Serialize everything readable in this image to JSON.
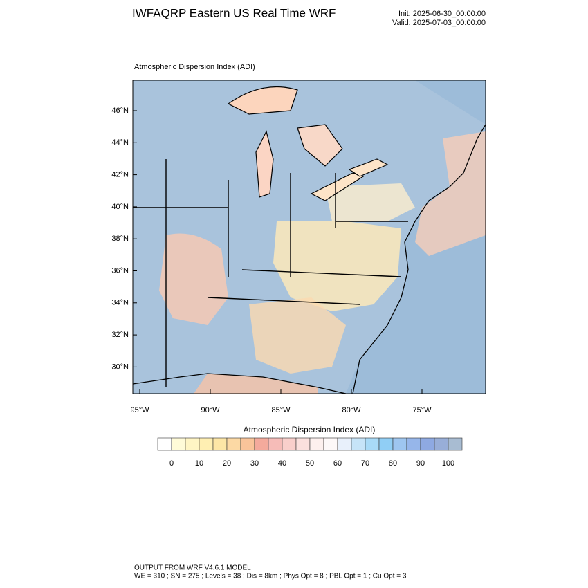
{
  "header": {
    "title": "IWFAQRP Eastern US Real Time WRF",
    "init": "Init: 2025-06-30_00:00:00",
    "valid": "Valid: 2025-07-03_00:00:00"
  },
  "map": {
    "subtitle": "Atmospheric Dispersion Index   (ADI)",
    "lat_labels": [
      "46°N",
      "44°N",
      "42°N",
      "40°N",
      "38°N",
      "36°N",
      "34°N",
      "32°N",
      "30°N"
    ],
    "lon_labels": [
      "95°W",
      "90°W",
      "85°W",
      "80°W",
      "75°W"
    ]
  },
  "colorbar": {
    "title": "Atmospheric Dispersion Index  (ADI)",
    "colors": [
      "#ffffff",
      "#fffbd8",
      "#fff5c4",
      "#ffefb2",
      "#fde6a6",
      "#fcd9a4",
      "#f9c49a",
      "#f4aa9c",
      "#f6bcb8",
      "#f9cfcb",
      "#fbe0dd",
      "#fdf0ee",
      "#fdf8f8",
      "#e8f0fb",
      "#c6e4f8",
      "#a8daf7",
      "#90cef5",
      "#9ec6f0",
      "#96b6ea",
      "#8ea9e2",
      "#98aed8",
      "#a8bcd2"
    ],
    "ticks": [
      0,
      10,
      20,
      30,
      40,
      50,
      60,
      70,
      80,
      90,
      100
    ]
  },
  "footer": {
    "line1": "OUTPUT FROM WRF V4.6.1 MODEL",
    "line2": "WE = 310 ; SN = 275 ; Levels = 38 ; Dis = 8km ; Phys Opt = 8 ; PBL Opt = 1 ; Cu Opt = 3"
  }
}
